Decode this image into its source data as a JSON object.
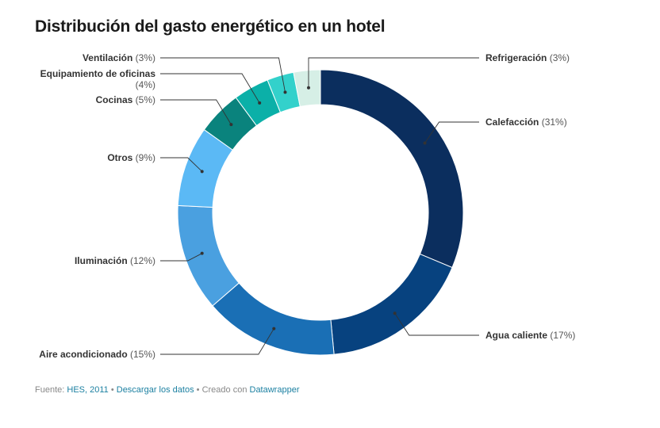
{
  "title": "Distribución del gasto energético en un hotel",
  "chart_data": {
    "type": "pie",
    "donut": true,
    "title": "Distribución del gasto energético en un hotel",
    "slices": [
      {
        "label": "Calefacción",
        "value": 31,
        "pct_text": "(31%)",
        "color": "#0b2e5e",
        "side": "right"
      },
      {
        "label": "Agua caliente",
        "value": 17,
        "pct_text": "(17%)",
        "color": "#07427f",
        "side": "right"
      },
      {
        "label": "Aire acondicionado",
        "value": 15,
        "pct_text": "(15%)",
        "color": "#1a6fb5",
        "side": "left"
      },
      {
        "label": "Iluminación",
        "value": 12,
        "pct_text": "(12%)",
        "color": "#4aa0e0",
        "side": "left"
      },
      {
        "label": "Otros",
        "value": 9,
        "pct_text": "(9%)",
        "color": "#5bb9f5",
        "side": "left"
      },
      {
        "label": "Cocinas",
        "value": 5,
        "pct_text": "(5%)",
        "color": "#0a837d",
        "side": "left"
      },
      {
        "label": "Equipamiento de oficinas",
        "value": 4,
        "pct_text": "(4%)",
        "color": "#0bb0a8",
        "side": "left"
      },
      {
        "label": "Ventilación",
        "value": 3,
        "pct_text": "(3%)",
        "color": "#33d1cb",
        "side": "left"
      },
      {
        "label": "Refrigeración",
        "value": 3,
        "pct_text": "(3%)",
        "color": "#d6efe6",
        "side": "right"
      }
    ]
  },
  "footer": {
    "source_prefix": "Fuente:",
    "source_link": "HES, 2011",
    "sep1": "•",
    "download_link": "Descargar los datos",
    "sep2": "•",
    "created_with": "Creado con",
    "tool_link": "Datawrapper"
  }
}
